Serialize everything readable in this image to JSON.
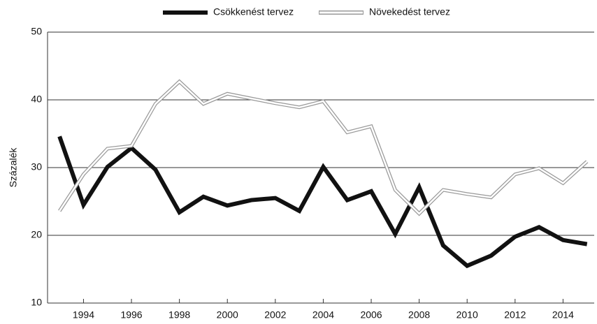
{
  "chart_data": {
    "type": "line",
    "y_label": "Százalék",
    "x": [
      1993,
      1994,
      1995,
      1996,
      1997,
      1998,
      1999,
      2000,
      2001,
      2002,
      2003,
      2004,
      2005,
      2006,
      2007,
      2008,
      2009,
      2010,
      2011,
      2012,
      2013,
      2014,
      2015
    ],
    "series": [
      {
        "name": "Csökkenést tervez",
        "color": "#111111",
        "style": "solid",
        "values": [
          34.6,
          24.5,
          30.1,
          32.9,
          29.7,
          23.4,
          25.7,
          24.4,
          25.2,
          25.5,
          23.6,
          30.1,
          25.2,
          26.5,
          20.2,
          27.1,
          18.5,
          15.5,
          17.0,
          19.8,
          21.2,
          19.3,
          18.7
        ]
      },
      {
        "name": "Növekedést tervez",
        "color": "#999999",
        "style": "double",
        "values": [
          23.6,
          29.0,
          32.8,
          33.2,
          39.4,
          42.7,
          39.4,
          40.9,
          40.2,
          39.5,
          38.9,
          39.8,
          35.2,
          36.1,
          26.7,
          23.2,
          26.7,
          26.1,
          25.6,
          29.0,
          29.9,
          27.7,
          30.9
        ]
      }
    ],
    "xlim": [
      1992.5,
      2015.3
    ],
    "xticks": [
      1994,
      1996,
      1998,
      2000,
      2002,
      2004,
      2006,
      2008,
      2010,
      2012,
      2014
    ],
    "ylim": [
      10,
      50
    ],
    "yticks": [
      10,
      20,
      30,
      40,
      50
    ],
    "grid": true,
    "legend": "top"
  }
}
